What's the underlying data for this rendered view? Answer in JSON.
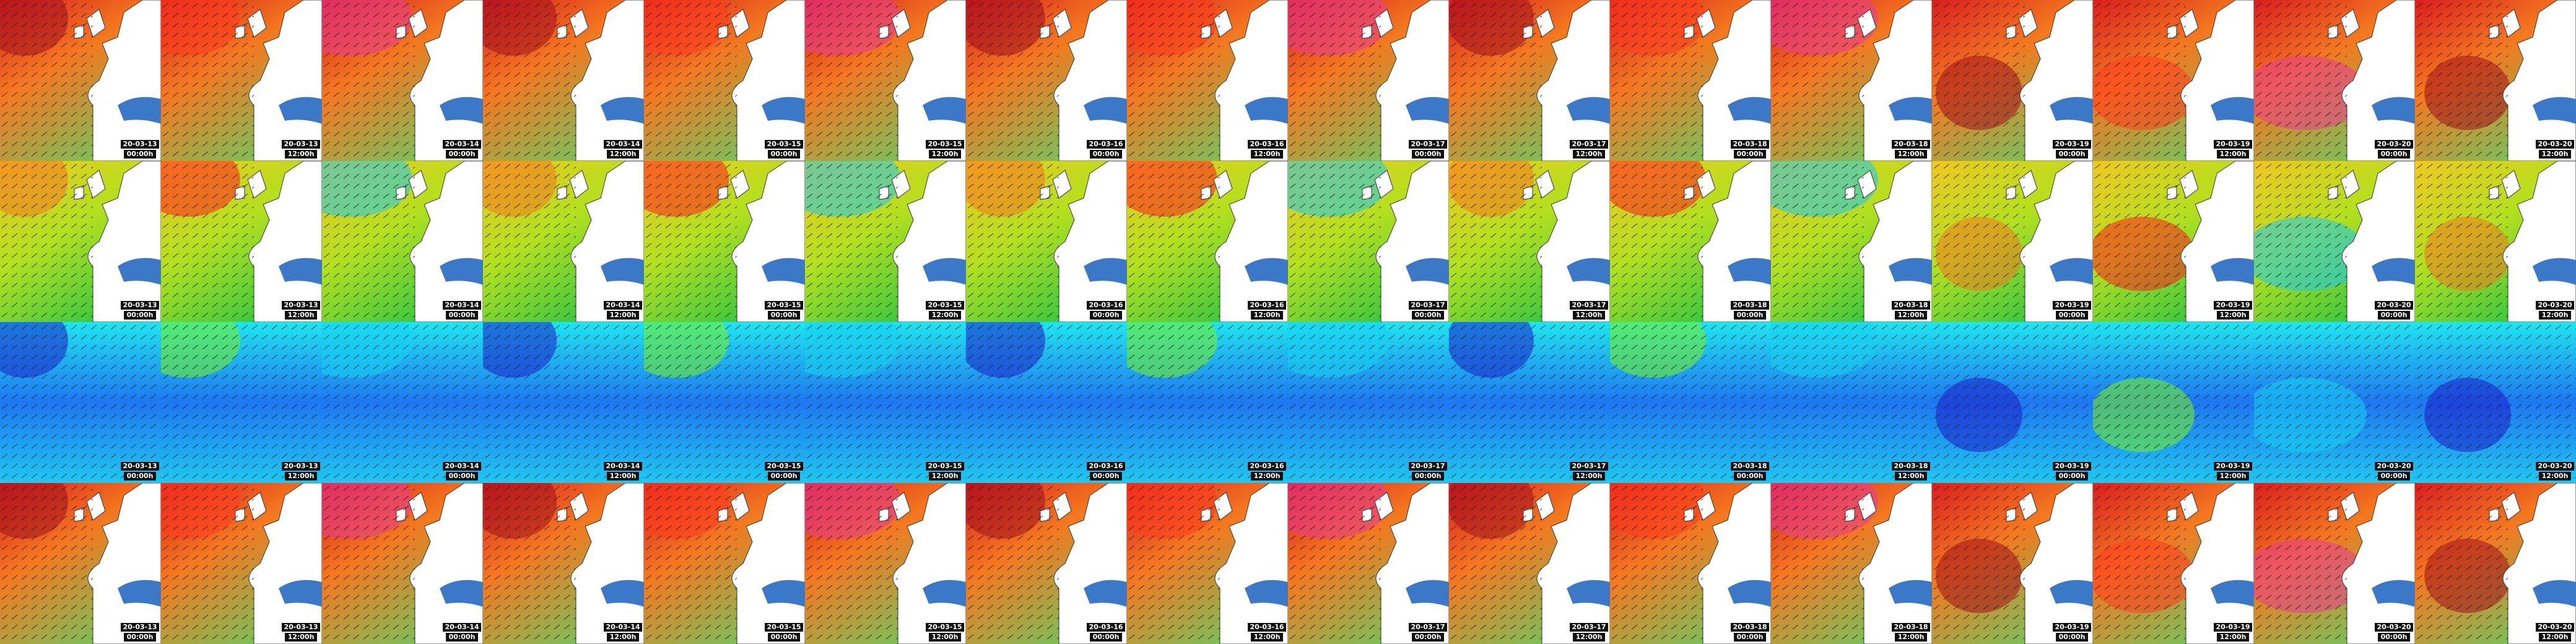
{
  "rows": [
    [
      {
        "date": "20-03-13",
        "time": "00:00h"
      },
      {
        "date": "20-03-13",
        "time": "12:00h"
      },
      {
        "date": "20-03-14",
        "time": "00:00h"
      },
      {
        "date": "20-03-14",
        "time": "12:00h"
      },
      {
        "date": "20-03-15",
        "time": "00:00h"
      },
      {
        "date": "20-03-15",
        "time": "12:00h"
      },
      {
        "date": "20-03-16",
        "time": "00:00h"
      },
      {
        "date": "20-03-16",
        "time": "12:00h"
      },
      {
        "date": "20-03-17",
        "time": "00:00h"
      },
      {
        "date": "20-03-17",
        "time": "12:00h"
      },
      {
        "date": "20-03-18",
        "time": "00:00h"
      },
      {
        "date": "20-03-18",
        "time": "12:00h"
      },
      {
        "date": "20-03-19",
        "time": "00:00h"
      },
      {
        "date": "20-03-19",
        "time": "12:00h"
      },
      {
        "date": "20-03-20",
        "time": "00:00h"
      },
      {
        "date": "20-03-20",
        "time": "12:00h"
      }
    ],
    [
      {
        "date": "20-03-13",
        "time": "00:00h"
      },
      {
        "date": "20-03-13",
        "time": "12:00h"
      },
      {
        "date": "20-03-14",
        "time": "00:00h"
      },
      {
        "date": "20-03-14",
        "time": "12:00h"
      },
      {
        "date": "20-03-15",
        "time": "00:00h"
      },
      {
        "date": "20-03-15",
        "time": "12:00h"
      },
      {
        "date": "20-03-16",
        "time": "00:00h"
      },
      {
        "date": "20-03-16",
        "time": "12:00h"
      },
      {
        "date": "20-03-17",
        "time": "00:00h"
      },
      {
        "date": "20-03-17",
        "time": "12:00h"
      },
      {
        "date": "20-03-18",
        "time": "00:00h"
      },
      {
        "date": "20-03-18",
        "time": "12:00h"
      },
      {
        "date": "20-03-19",
        "time": "00:00h"
      },
      {
        "date": "20-03-19",
        "time": "12:00h"
      },
      {
        "date": "20-03-20",
        "time": "00:00h"
      },
      {
        "date": "20-03-20",
        "time": "12:00h"
      }
    ],
    [
      {
        "date": "20-03-13",
        "time": "00:00h"
      },
      {
        "date": "20-03-13",
        "time": "12:00h"
      },
      {
        "date": "20-03-14",
        "time": "00:00h"
      },
      {
        "date": "20-03-14",
        "time": "12:00h"
      },
      {
        "date": "20-03-15",
        "time": "00:00h"
      },
      {
        "date": "20-03-15",
        "time": "12:00h"
      },
      {
        "date": "20-03-16",
        "time": "00:00h"
      },
      {
        "date": "20-03-16",
        "time": "12:00h"
      },
      {
        "date": "20-03-17",
        "time": "00:00h"
      },
      {
        "date": "20-03-17",
        "time": "12:00h"
      },
      {
        "date": "20-03-18",
        "time": "00:00h"
      },
      {
        "date": "20-03-18",
        "time": "12:00h"
      },
      {
        "date": "20-03-19",
        "time": "00:00h"
      },
      {
        "date": "20-03-19",
        "time": "12:00h"
      },
      {
        "date": "20-03-20",
        "time": "00:00h"
      },
      {
        "date": "20-03-20",
        "time": "12:00h"
      }
    ],
    [
      {
        "date": "20-03-13",
        "time": "00:00h"
      },
      {
        "date": "20-03-13",
        "time": "12:00h"
      },
      {
        "date": "20-03-14",
        "time": "00:00h"
      },
      {
        "date": "20-03-14",
        "time": "12:00h"
      },
      {
        "date": "20-03-15",
        "time": "00:00h"
      },
      {
        "date": "20-03-15",
        "time": "12:00h"
      },
      {
        "date": "20-03-16",
        "time": "00:00h"
      },
      {
        "date": "20-03-16",
        "time": "12:00h"
      },
      {
        "date": "20-03-17",
        "time": "00:00h"
      },
      {
        "date": "20-03-17",
        "time": "12:00h"
      },
      {
        "date": "20-03-18",
        "time": "00:00h"
      },
      {
        "date": "20-03-18",
        "time": "12:00h"
      },
      {
        "date": "20-03-19",
        "time": "00:00h"
      },
      {
        "date": "20-03-19",
        "time": "12:00h"
      },
      {
        "date": "20-03-20",
        "time": "00:00h"
      },
      {
        "date": "20-03-20",
        "time": "12:00h"
      }
    ]
  ]
}
